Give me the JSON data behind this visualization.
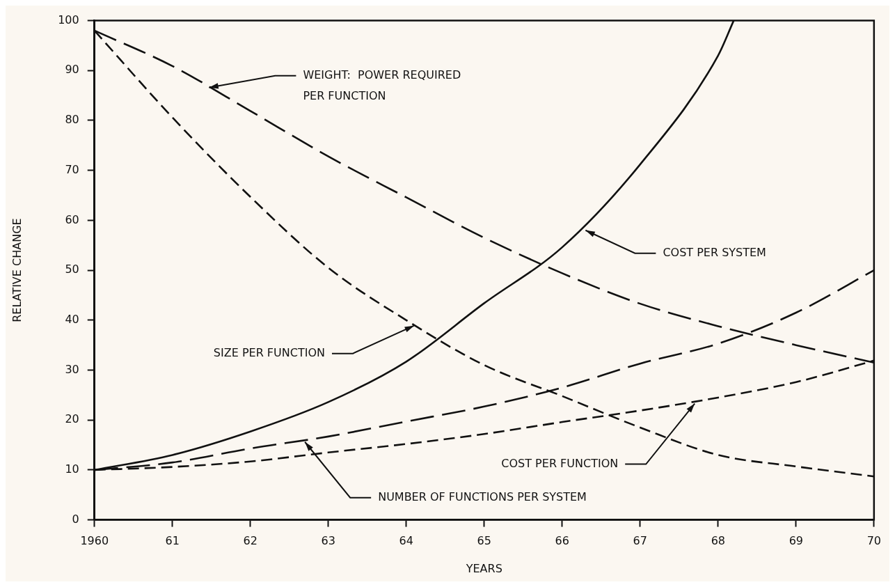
{
  "chart_data": {
    "type": "line",
    "xlabel": "YEARS",
    "ylabel": "RELATIVE CHANGE",
    "xlim": [
      1960,
      1970
    ],
    "xticks": [
      1960,
      {
        "value": 1961,
        "label": "61"
      },
      {
        "value": 1962,
        "label": "62"
      },
      {
        "value": 1963,
        "label": "63"
      },
      {
        "value": 1964,
        "label": "64"
      },
      {
        "value": 1965,
        "label": "65"
      },
      {
        "value": 1966,
        "label": "66"
      },
      {
        "value": 1967,
        "label": "67"
      },
      {
        "value": 1968,
        "label": "68"
      },
      {
        "value": 1969,
        "label": "69"
      },
      {
        "value": 1970,
        "label": "70"
      }
    ],
    "ylim": [
      0,
      100
    ],
    "yticks": [
      0,
      10,
      20,
      30,
      40,
      50,
      60,
      70,
      80,
      90,
      100
    ],
    "x": [
      1960,
      1961,
      1962,
      1963,
      1964,
      1965,
      1966,
      1967,
      1968,
      1969,
      1970
    ],
    "series": [
      {
        "color": "#111111",
        "line_style": "dashed",
        "values": [
          98,
          90.9,
          81.9,
          72.8,
          64.6,
          56.5,
          49.4,
          43.3,
          38.8,
          35,
          31.5
        ]
      },
      {
        "color": "#111111",
        "line_style": "dashed",
        "values": [
          98,
          80.6,
          64.7,
          50.5,
          40,
          31,
          24.8,
          18.5,
          13,
          10.7,
          8.7
        ]
      },
      {
        "color": "#111111",
        "line_style": "solid",
        "x": [
          1960,
          1961,
          1962,
          1963,
          1964,
          1965,
          1966,
          1967,
          1968,
          1968.2
        ],
        "values": [
          10,
          13,
          17.7,
          23.6,
          31.7,
          43.4,
          54.6,
          71.2,
          93,
          100
        ]
      },
      {
        "color": "#111111",
        "line_style": "dashed",
        "values": [
          10,
          10.6,
          11.7,
          13.5,
          15.2,
          17.2,
          19.6,
          21.9,
          24.5,
          27.6,
          31.9
        ]
      },
      {
        "color": "#111111",
        "line_style": "dashed",
        "values": [
          10,
          11.5,
          14.3,
          16.7,
          19.7,
          22.7,
          26.5,
          31.3,
          35.3,
          41.5,
          50
        ]
      }
    ],
    "annotations": [
      {
        "text": "WEIGHT:  POWER REQUIRED\nPER FUNCTION",
        "x": 1961.47,
        "y": 86.6
      },
      {
        "text": "COST PER SYSTEM",
        "x": 1966.3,
        "y": 58
      },
      {
        "text": "SIZE PER FUNCTION",
        "x": 1964.1,
        "y": 38.9
      },
      {
        "text": "COST PER FUNCTION",
        "x": 1967.7,
        "y": 23.3
      },
      {
        "text": "NUMBER OF FUNCTIONS PER SYSTEM",
        "x": 1962.7,
        "y": 15.6
      }
    ],
    "grid": false,
    "legend": false,
    "marker": "none"
  }
}
